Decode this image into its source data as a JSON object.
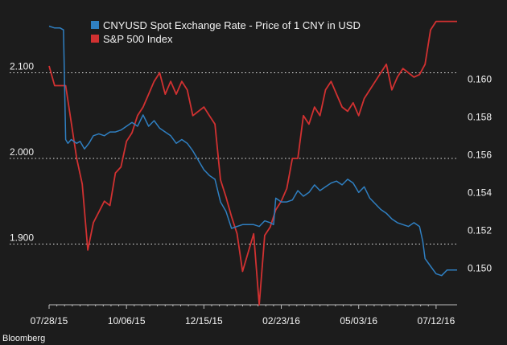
{
  "chart_data": {
    "type": "line",
    "source": "Bloomberg",
    "colors": {
      "background": "#1c1c1c",
      "cny": "#2f7fc1",
      "spx": "#d13131",
      "grid": "#e6e6e6",
      "text": "#f2f2f2"
    },
    "x_ticks": [
      {
        "label": "07/28/15",
        "t": 0
      },
      {
        "label": "10/06/15",
        "t": 70
      },
      {
        "label": "12/15/15",
        "t": 140
      },
      {
        "label": "02/23/16",
        "t": 210
      },
      {
        "label": "05/03/16",
        "t": 280
      },
      {
        "label": "07/12/16",
        "t": 350
      }
    ],
    "x_range": [
      0,
      369
    ],
    "left_axis": {
      "range": [
        1.83,
        2.17
      ],
      "ticks": [
        "2.100",
        "2.000",
        "1.900"
      ],
      "tick_values": [
        2.1,
        2.0,
        1.9
      ]
    },
    "right_axis": {
      "range": [
        0.1481,
        0.1635
      ],
      "ticks": [
        "0.160",
        "0.158",
        "0.156",
        "0.154",
        "0.152",
        "0.150"
      ],
      "tick_values": [
        0.16,
        0.158,
        0.156,
        0.154,
        0.152,
        0.15
      ]
    },
    "gridlines_left": [
      2.1,
      2.0,
      1.9
    ],
    "series": [
      {
        "name": "CNYUSD Spot Exchange Rate - Price of 1 CNY in USD",
        "axis": "right",
        "points": [
          [
            0,
            0.1628
          ],
          [
            5,
            0.1627
          ],
          [
            10,
            0.1627
          ],
          [
            13,
            0.1626
          ],
          [
            15,
            0.1568
          ],
          [
            17,
            0.1566
          ],
          [
            20,
            0.1568
          ],
          [
            25,
            0.1566
          ],
          [
            28,
            0.1567
          ],
          [
            32,
            0.1563
          ],
          [
            36,
            0.1566
          ],
          [
            40,
            0.157
          ],
          [
            45,
            0.1571
          ],
          [
            50,
            0.157
          ],
          [
            55,
            0.1572
          ],
          [
            60,
            0.1572
          ],
          [
            65,
            0.1573
          ],
          [
            70,
            0.1575
          ],
          [
            75,
            0.1577
          ],
          [
            80,
            0.1575
          ],
          [
            85,
            0.1581
          ],
          [
            90,
            0.1575
          ],
          [
            95,
            0.1578
          ],
          [
            100,
            0.1574
          ],
          [
            105,
            0.1572
          ],
          [
            110,
            0.157
          ],
          [
            115,
            0.1566
          ],
          [
            120,
            0.1568
          ],
          [
            125,
            0.1566
          ],
          [
            130,
            0.1562
          ],
          [
            135,
            0.1557
          ],
          [
            140,
            0.1552
          ],
          [
            145,
            0.1549
          ],
          [
            150,
            0.1547
          ],
          [
            155,
            0.1535
          ],
          [
            160,
            0.153
          ],
          [
            165,
            0.1521
          ],
          [
            170,
            0.1522
          ],
          [
            175,
            0.1523
          ],
          [
            180,
            0.1523
          ],
          [
            185,
            0.1523
          ],
          [
            190,
            0.1522
          ],
          [
            195,
            0.1525
          ],
          [
            200,
            0.1524
          ],
          [
            203,
            0.1523
          ],
          [
            205,
            0.1537
          ],
          [
            210,
            0.1535
          ],
          [
            215,
            0.1535
          ],
          [
            220,
            0.1536
          ],
          [
            225,
            0.1541
          ],
          [
            230,
            0.1538
          ],
          [
            235,
            0.154
          ],
          [
            240,
            0.1544
          ],
          [
            245,
            0.1541
          ],
          [
            250,
            0.1543
          ],
          [
            255,
            0.1545
          ],
          [
            260,
            0.1546
          ],
          [
            265,
            0.1544
          ],
          [
            270,
            0.1547
          ],
          [
            275,
            0.1545
          ],
          [
            280,
            0.154
          ],
          [
            285,
            0.1543
          ],
          [
            290,
            0.1537
          ],
          [
            295,
            0.1534
          ],
          [
            300,
            0.1531
          ],
          [
            305,
            0.1529
          ],
          [
            310,
            0.1526
          ],
          [
            315,
            0.1524
          ],
          [
            320,
            0.1523
          ],
          [
            325,
            0.1522
          ],
          [
            330,
            0.1524
          ],
          [
            335,
            0.1522
          ],
          [
            338,
            0.1514
          ],
          [
            340,
            0.1505
          ],
          [
            345,
            0.1501
          ],
          [
            350,
            0.1497
          ],
          [
            355,
            0.1496
          ],
          [
            360,
            0.1499
          ],
          [
            364,
            0.1499
          ],
          [
            369,
            0.1499
          ]
        ]
      },
      {
        "name": "S&P 500 Index",
        "axis": "left",
        "points": [
          [
            0,
            2.108
          ],
          [
            5,
            2.085
          ],
          [
            15,
            2.085
          ],
          [
            25,
            2.0
          ],
          [
            30,
            1.97
          ],
          [
            35,
            1.893
          ],
          [
            40,
            1.925
          ],
          [
            50,
            1.95
          ],
          [
            55,
            1.945
          ],
          [
            60,
            1.983
          ],
          [
            65,
            1.99
          ],
          [
            70,
            2.02
          ],
          [
            75,
            2.03
          ],
          [
            80,
            2.05
          ],
          [
            85,
            2.06
          ],
          [
            90,
            2.075
          ],
          [
            95,
            2.09
          ],
          [
            100,
            2.1
          ],
          [
            105,
            2.075
          ],
          [
            110,
            2.09
          ],
          [
            115,
            2.075
          ],
          [
            120,
            2.09
          ],
          [
            125,
            2.08
          ],
          [
            130,
            2.05
          ],
          [
            135,
            2.055
          ],
          [
            140,
            2.06
          ],
          [
            145,
            2.05
          ],
          [
            150,
            2.04
          ],
          [
            155,
            1.975
          ],
          [
            160,
            1.955
          ],
          [
            165,
            1.932
          ],
          [
            170,
            1.912
          ],
          [
            175,
            1.868
          ],
          [
            180,
            1.89
          ],
          [
            185,
            1.912
          ],
          [
            190,
            1.829
          ],
          [
            195,
            1.91
          ],
          [
            200,
            1.92
          ],
          [
            205,
            1.94
          ],
          [
            210,
            1.95
          ],
          [
            215,
            1.965
          ],
          [
            220,
            2.0
          ],
          [
            225,
            2.0
          ],
          [
            230,
            2.05
          ],
          [
            235,
            2.04
          ],
          [
            240,
            2.06
          ],
          [
            245,
            2.05
          ],
          [
            250,
            2.08
          ],
          [
            255,
            2.09
          ],
          [
            260,
            2.075
          ],
          [
            265,
            2.06
          ],
          [
            270,
            2.055
          ],
          [
            275,
            2.065
          ],
          [
            280,
            2.05
          ],
          [
            285,
            2.07
          ],
          [
            290,
            2.08
          ],
          [
            295,
            2.09
          ],
          [
            300,
            2.1
          ],
          [
            305,
            2.11
          ],
          [
            310,
            2.08
          ],
          [
            315,
            2.095
          ],
          [
            320,
            2.105
          ],
          [
            325,
            2.1
          ],
          [
            330,
            2.095
          ],
          [
            335,
            2.098
          ],
          [
            340,
            2.11
          ],
          [
            345,
            2.15
          ],
          [
            350,
            2.16
          ],
          [
            355,
            2.16
          ],
          [
            360,
            2.16
          ],
          [
            369,
            2.16
          ]
        ]
      }
    ]
  }
}
